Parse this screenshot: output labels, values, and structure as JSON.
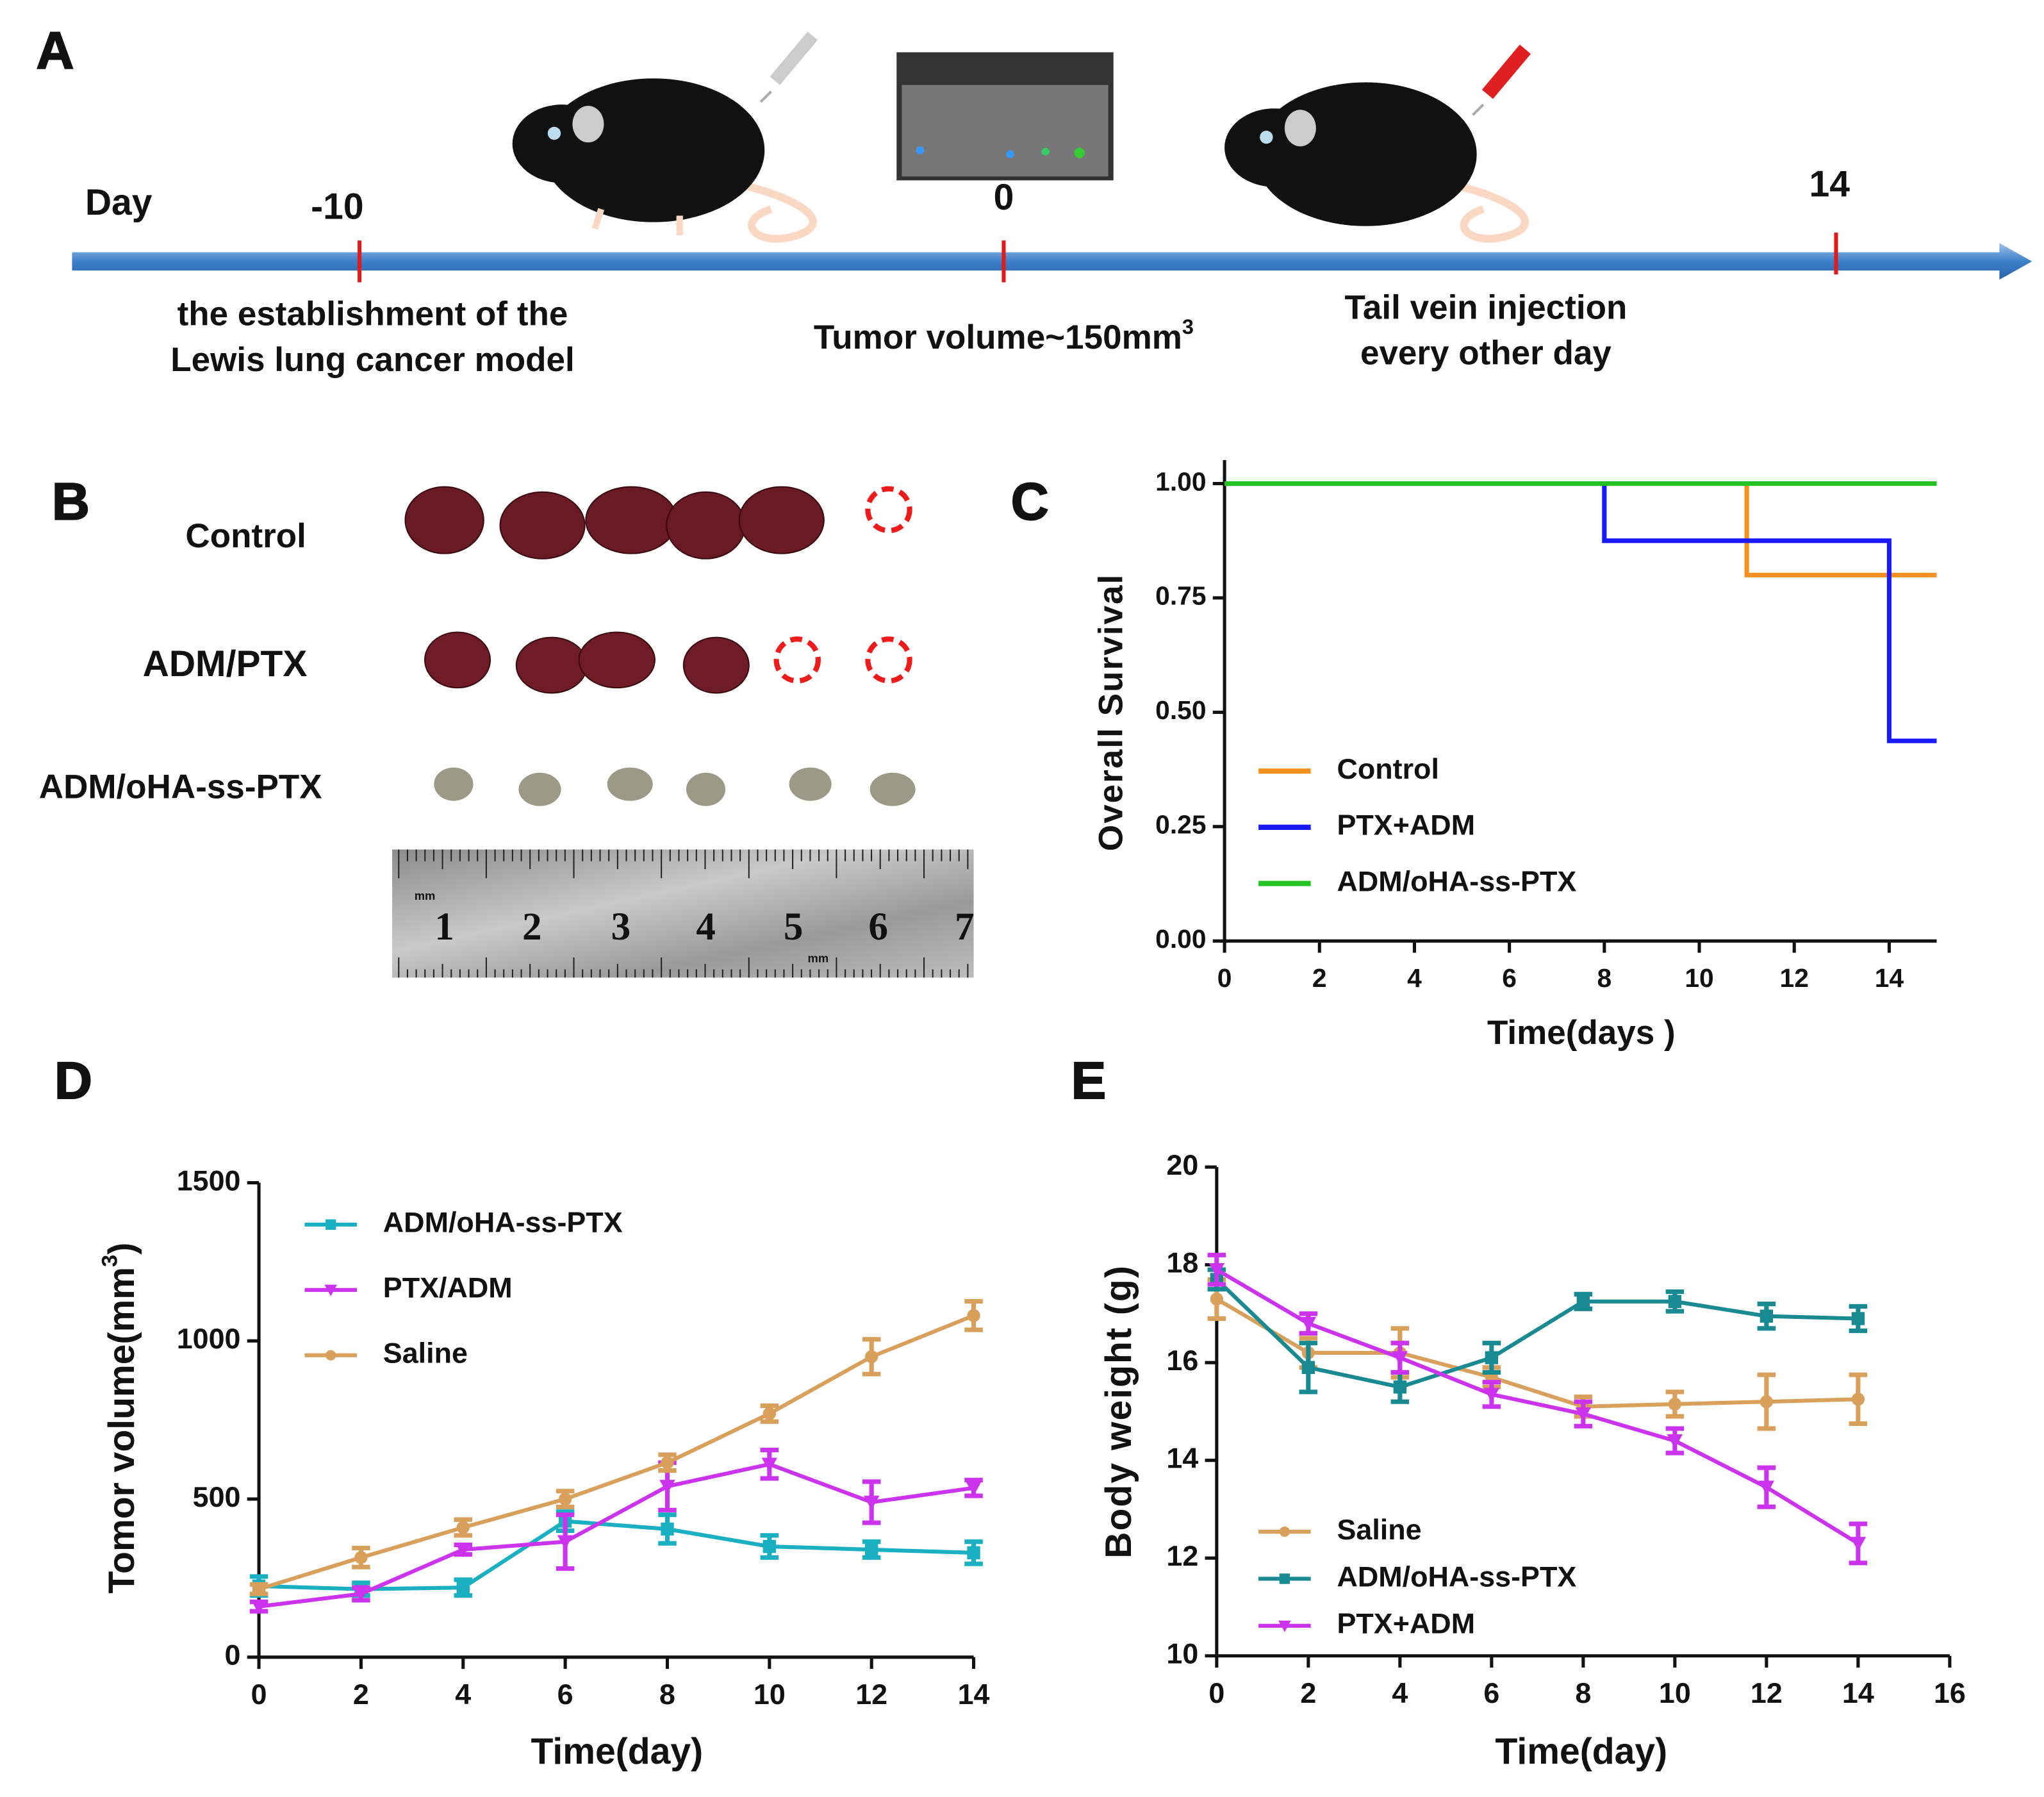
{
  "panels": {
    "labels": [
      "A",
      "B",
      "C",
      "D",
      "E"
    ]
  },
  "timeline": {
    "axis_label": "Day",
    "days": [
      -10,
      0,
      14
    ],
    "model_caption": [
      "the establishment of the",
      "Lewis lung cancer model"
    ],
    "tumor_caption": {
      "text": "Tumor volume~150mm",
      "sup": "3"
    },
    "injection_caption": [
      "Tail vein injection",
      "every other day"
    ]
  },
  "tumors": {
    "row_labels": [
      "Control",
      "ADM/PTX",
      "ADM/oHA-ss-PTX"
    ]
  },
  "ruler": {
    "numbers": [
      1,
      2,
      3,
      4,
      5,
      6,
      7
    ],
    "unit": "mm"
  },
  "chart_data": [
    {
      "type": "step",
      "x_label": "Time(days )",
      "y_label": "Overall Survival",
      "xlim": [
        0,
        15
      ],
      "xticks": [
        0,
        2,
        4,
        6,
        8,
        10,
        12,
        14
      ],
      "ylim": [
        0,
        1
      ],
      "yticks": [
        {
          "value": 0,
          "label": "0.00"
        },
        {
          "value": 0.25,
          "label": "0.25"
        },
        {
          "value": 0.5,
          "label": "0.50"
        },
        {
          "value": 0.75,
          "label": "0.75"
        },
        {
          "value": 1,
          "label": "1.00"
        }
      ],
      "legend": "lower left",
      "series": [
        {
          "name": "Control",
          "color": "#f7901e",
          "x": [
            0,
            11,
            15
          ],
          "values": [
            1,
            0.8,
            0.8
          ]
        },
        {
          "name": "PTX+ADM",
          "color": "#1a1aff",
          "x": [
            0,
            8,
            14,
            15
          ],
          "values": [
            1,
            0.875,
            0.4375,
            0.4375
          ]
        },
        {
          "name": "ADM/oHA-ss-PTX",
          "color": "#22c322",
          "x": [
            0,
            15
          ],
          "values": [
            1,
            1
          ]
        }
      ]
    },
    {
      "type": "line",
      "x_label": "Time(day)",
      "y_label": {
        "text": "Tomor volume(mm",
        "sup": "3",
        "end": ")"
      },
      "x": [
        0,
        2,
        4,
        6,
        8,
        10,
        12,
        14
      ],
      "xlim": [
        0,
        14
      ],
      "xticks": [
        0,
        2,
        4,
        6,
        8,
        10,
        12,
        14
      ],
      "ylim": [
        0,
        1500
      ],
      "yticks": [
        0,
        500,
        1000,
        1500
      ],
      "legend": "upper left",
      "series": [
        {
          "name": "ADM/oHA-ss-PTX",
          "color": "#1ab0c2",
          "marker": "square",
          "values": [
            225,
            215,
            220,
            430,
            405,
            350,
            340,
            330
          ],
          "errors": [
            30,
            20,
            25,
            30,
            45,
            35,
            25,
            35
          ]
        },
        {
          "name": "PTX/ADM",
          "color": "#cc33ee",
          "marker": "triangle",
          "values": [
            160,
            200,
            340,
            365,
            540,
            610,
            490,
            535
          ],
          "errors": [
            15,
            20,
            15,
            85,
            75,
            45,
            65,
            25
          ]
        },
        {
          "name": "Saline",
          "color": "#d9a05b",
          "marker": "circle",
          "values": [
            215,
            315,
            410,
            500,
            615,
            770,
            950,
            1080
          ],
          "errors": [
            15,
            30,
            25,
            25,
            25,
            25,
            55,
            45
          ]
        }
      ]
    },
    {
      "type": "line",
      "x_label": "Time(day)",
      "y_label": "Body weight (g)",
      "x": [
        0,
        2,
        4,
        6,
        8,
        10,
        12,
        14
      ],
      "xlim": [
        0,
        16
      ],
      "xticks": [
        0,
        2,
        4,
        6,
        8,
        10,
        12,
        14,
        16
      ],
      "ylim": [
        10,
        20
      ],
      "yticks": [
        10,
        12,
        14,
        16,
        18,
        20
      ],
      "legend": "lower left",
      "series": [
        {
          "name": "Saline",
          "color": "#d9a05b",
          "marker": "circle",
          "values": [
            17.3,
            16.2,
            16.2,
            15.7,
            15.1,
            15.15,
            15.2,
            15.25
          ],
          "errors": [
            0.4,
            0.3,
            0.5,
            0.2,
            0.2,
            0.25,
            0.55,
            0.5
          ]
        },
        {
          "name": "ADM/oHA-ss-PTX",
          "color": "#1a8a92",
          "marker": "square",
          "values": [
            17.7,
            15.9,
            15.5,
            16.1,
            17.25,
            17.25,
            16.95,
            16.9
          ],
          "errors": [
            0.2,
            0.5,
            0.3,
            0.3,
            0.15,
            0.2,
            0.25,
            0.25
          ]
        },
        {
          "name": "PTX+ADM",
          "color": "#cc33ee",
          "marker": "triangle",
          "values": [
            17.9,
            16.8,
            16.1,
            15.35,
            14.95,
            14.4,
            13.45,
            12.3
          ],
          "errors": [
            0.3,
            0.2,
            0.3,
            0.25,
            0.25,
            0.25,
            0.4,
            0.4
          ]
        }
      ]
    }
  ]
}
